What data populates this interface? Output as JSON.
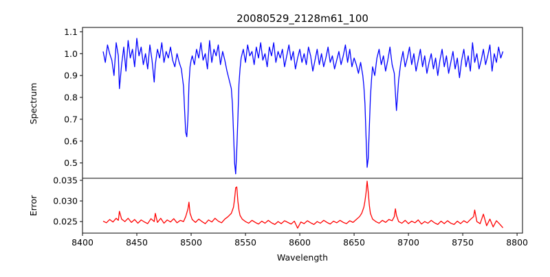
{
  "chart_data": {
    "type": "line",
    "title": "20080529_2128m61_100",
    "xlabel": "Wavelength",
    "xlim": [
      8400,
      8805
    ],
    "xticks": [
      "8400",
      "8450",
      "8500",
      "8550",
      "8600",
      "8650",
      "8700",
      "8750",
      "8800"
    ],
    "grid": false,
    "panels": [
      {
        "ylabel": "Spectrum",
        "ylim": [
          0.43,
          1.12
        ],
        "yticks": [
          "0.5",
          "0.6",
          "0.7",
          "0.8",
          "0.9",
          "1.0",
          "1.1"
        ],
        "series": [
          {
            "color": "#0000ff",
            "x": [
              8419,
              8421,
              8423,
              8425,
              8427,
              8429,
              8431,
              8433,
              8434,
              8436,
              8438,
              8440,
              8442,
              8444,
              8446,
              8448,
              8450,
              8452,
              8454,
              8456,
              8458,
              8460,
              8462,
              8464,
              8466,
              8467,
              8469,
              8471,
              8473,
              8475,
              8477,
              8479,
              8481,
              8483,
              8485,
              8487,
              8489,
              8491,
              8493,
              8494,
              8495,
              8496,
              8497,
              8498,
              8499,
              8500,
              8501,
              8503,
              8505,
              8507,
              8509,
              8511,
              8513,
              8515,
              8517,
              8519,
              8521,
              8523,
              8525,
              8527,
              8529,
              8531,
              8533,
              8535,
              8537,
              8538,
              8539,
              8540,
              8541,
              8542,
              8543,
              8544,
              8545,
              8546,
              8548,
              8550,
              8552,
              8554,
              8556,
              8558,
              8560,
              8562,
              8564,
              8566,
              8568,
              8570,
              8572,
              8574,
              8576,
              8578,
              8580,
              8582,
              8584,
              8586,
              8588,
              8590,
              8592,
              8594,
              8596,
              8598,
              8600,
              8602,
              8604,
              8606,
              8608,
              8610,
              8612,
              8614,
              8616,
              8618,
              8620,
              8622,
              8624,
              8626,
              8628,
              8630,
              8632,
              8634,
              8636,
              8638,
              8640,
              8642,
              8644,
              8646,
              8648,
              8650,
              8652,
              8654,
              8656,
              8658,
              8659,
              8660,
              8661,
              8662,
              8663,
              8664,
              8665,
              8666,
              8667,
              8669,
              8671,
              8673,
              8675,
              8677,
              8679,
              8681,
              8683,
              8685,
              8687,
              8688,
              8689,
              8691,
              8693,
              8695,
              8697,
              8699,
              8701,
              8703,
              8705,
              8707,
              8709,
              8711,
              8713,
              8715,
              8717,
              8719,
              8721,
              8723,
              8725,
              8727,
              8729,
              8731,
              8733,
              8735,
              8737,
              8739,
              8741,
              8743,
              8745,
              8747,
              8749,
              8751,
              8753,
              8755,
              8757,
              8759,
              8761,
              8763,
              8765,
              8767,
              8769,
              8771,
              8773,
              8775,
              8777,
              8779,
              8781,
              8783,
              8785,
              8787
            ],
            "y": [
              1.01,
              0.96,
              1.04,
              1.0,
              0.97,
              0.9,
              1.05,
              0.99,
              0.84,
              0.95,
              1.03,
              0.92,
              1.06,
              0.98,
              1.02,
              0.94,
              1.07,
              0.99,
              1.03,
              0.95,
              1.0,
              0.93,
              1.04,
              0.97,
              0.87,
              0.95,
              1.02,
              0.98,
              1.05,
              0.96,
              1.01,
              0.98,
              1.03,
              0.97,
              0.94,
              1.0,
              0.96,
              0.93,
              0.85,
              0.74,
              0.64,
              0.62,
              0.7,
              0.86,
              0.94,
              0.97,
              0.99,
              0.95,
              1.02,
              0.98,
              1.05,
              0.97,
              1.0,
              0.93,
              1.06,
              0.96,
              1.02,
              0.99,
              1.04,
              0.95,
              1.01,
              0.97,
              0.92,
              0.88,
              0.84,
              0.77,
              0.64,
              0.5,
              0.45,
              0.56,
              0.7,
              0.86,
              0.93,
              0.98,
              1.02,
              0.96,
              1.04,
              0.99,
              1.01,
              0.95,
              1.03,
              0.98,
              1.05,
              0.97,
              1.0,
              0.94,
              1.03,
              0.99,
              1.05,
              0.96,
              1.01,
              0.98,
              1.02,
              0.94,
              0.99,
              1.04,
              0.97,
              1.01,
              0.93,
              0.98,
              1.02,
              0.96,
              1.0,
              0.95,
              1.03,
              0.99,
              0.92,
              0.97,
              1.02,
              0.95,
              1.0,
              0.94,
              0.98,
              1.03,
              0.96,
              0.99,
              0.93,
              0.97,
              1.01,
              0.95,
              0.99,
              1.04,
              0.96,
              1.02,
              0.94,
              0.98,
              0.95,
              0.91,
              0.96,
              0.9,
              0.85,
              0.77,
              0.62,
              0.48,
              0.52,
              0.66,
              0.8,
              0.88,
              0.94,
              0.9,
              0.98,
              1.02,
              0.95,
              0.99,
              0.92,
              0.97,
              1.03,
              0.95,
              0.91,
              0.82,
              0.74,
              0.88,
              0.96,
              1.01,
              0.94,
              0.98,
              1.03,
              0.95,
              1.0,
              0.92,
              0.97,
              1.02,
              0.94,
              0.99,
              0.91,
              0.96,
              1.0,
              0.93,
              0.98,
              0.9,
              0.97,
              1.02,
              0.94,
              0.99,
              0.91,
              0.96,
              1.01,
              0.93,
              0.98,
              0.89,
              0.97,
              1.02,
              0.94,
              0.99,
              0.92,
              1.05,
              0.96,
              1.0,
              0.93,
              0.97,
              1.02,
              0.95,
              0.99,
              1.04,
              0.92,
              1.0,
              0.96,
              1.03,
              0.98,
              1.01
            ]
          }
        ]
      },
      {
        "ylabel": "Error",
        "ylim": [
          0.0222,
          0.0355
        ],
        "yticks": [
          "0.025",
          "0.030",
          "0.035"
        ],
        "series": [
          {
            "color": "#ff0000",
            "x": [
              8419,
              8422,
              8425,
              8428,
              8431,
              8433,
              8434,
              8436,
              8439,
              8442,
              8445,
              8448,
              8451,
              8454,
              8457,
              8460,
              8463,
              8466,
              8467,
              8469,
              8472,
              8475,
              8478,
              8481,
              8484,
              8487,
              8490,
              8493,
              8495,
              8497,
              8498,
              8499,
              8501,
              8504,
              8507,
              8510,
              8513,
              8516,
              8519,
              8522,
              8525,
              8528,
              8531,
              8534,
              8537,
              8539,
              8540,
              8541,
              8542,
              8543,
              8544,
              8545,
              8547,
              8550,
              8553,
              8556,
              8559,
              8562,
              8565,
              8568,
              8571,
              8574,
              8577,
              8580,
              8583,
              8586,
              8589,
              8592,
              8595,
              8598,
              8601,
              8604,
              8607,
              8610,
              8613,
              8616,
              8619,
              8622,
              8625,
              8628,
              8631,
              8634,
              8637,
              8640,
              8643,
              8646,
              8649,
              8652,
              8655,
              8657,
              8659,
              8660,
              8661,
              8662,
              8663,
              8664,
              8665,
              8667,
              8670,
              8673,
              8676,
              8679,
              8682,
              8685,
              8687,
              8688,
              8689,
              8691,
              8694,
              8697,
              8700,
              8703,
              8706,
              8709,
              8712,
              8715,
              8718,
              8721,
              8724,
              8727,
              8730,
              8733,
              8736,
              8739,
              8742,
              8745,
              8748,
              8751,
              8754,
              8757,
              8760,
              8761,
              8763,
              8766,
              8769,
              8772,
              8775,
              8778,
              8781,
              8784,
              8787
            ],
            "y": [
              0.0251,
              0.0247,
              0.0255,
              0.0249,
              0.0258,
              0.0253,
              0.0275,
              0.0256,
              0.025,
              0.0258,
              0.0248,
              0.0255,
              0.0246,
              0.0254,
              0.0249,
              0.0245,
              0.0257,
              0.025,
              0.027,
              0.0248,
              0.0258,
              0.0246,
              0.0254,
              0.0249,
              0.0257,
              0.0247,
              0.0253,
              0.025,
              0.0262,
              0.028,
              0.0297,
              0.027,
              0.0255,
              0.0248,
              0.0256,
              0.025,
              0.0245,
              0.0254,
              0.0249,
              0.0258,
              0.0251,
              0.0247,
              0.0256,
              0.0262,
              0.027,
              0.0285,
              0.0305,
              0.0332,
              0.0334,
              0.03,
              0.0278,
              0.0265,
              0.0256,
              0.025,
              0.0246,
              0.0253,
              0.0248,
              0.0244,
              0.0251,
              0.0246,
              0.0253,
              0.0247,
              0.0243,
              0.025,
              0.0245,
              0.0252,
              0.0248,
              0.0244,
              0.0251,
              0.0234,
              0.0249,
              0.0245,
              0.0252,
              0.0247,
              0.0243,
              0.025,
              0.0246,
              0.0253,
              0.0248,
              0.0244,
              0.0251,
              0.0247,
              0.0253,
              0.0248,
              0.0245,
              0.0252,
              0.0248,
              0.0255,
              0.0262,
              0.027,
              0.0285,
              0.03,
              0.032,
              0.0348,
              0.0322,
              0.029,
              0.027,
              0.0256,
              0.025,
              0.0246,
              0.0253,
              0.0248,
              0.0255,
              0.0252,
              0.0262,
              0.0281,
              0.0265,
              0.025,
              0.0246,
              0.0253,
              0.0245,
              0.0251,
              0.0247,
              0.0254,
              0.0244,
              0.025,
              0.0246,
              0.0253,
              0.0247,
              0.0243,
              0.0251,
              0.0245,
              0.0252,
              0.0246,
              0.0243,
              0.0251,
              0.0245,
              0.0252,
              0.0247,
              0.0255,
              0.0262,
              0.0278,
              0.025,
              0.0245,
              0.0268,
              0.024,
              0.0256,
              0.0237,
              0.0252,
              0.0244,
              0.0235
            ]
          }
        ]
      }
    ]
  }
}
